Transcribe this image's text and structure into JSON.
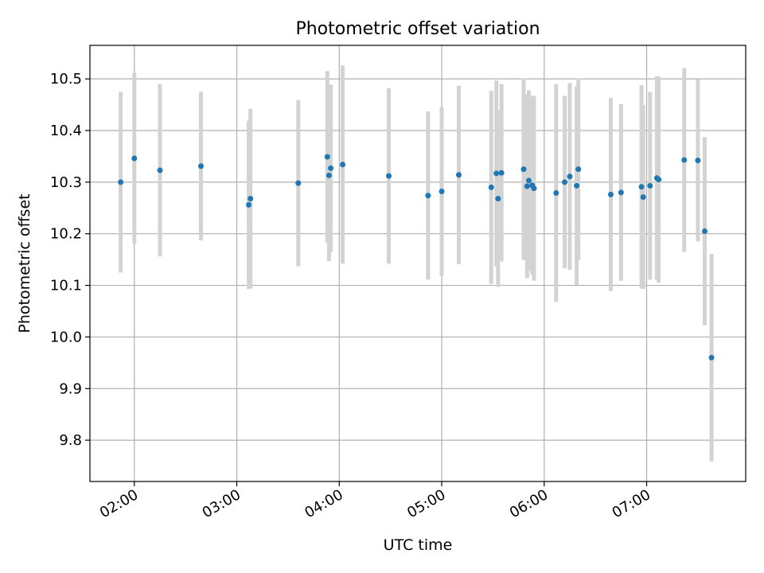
{
  "chart_data": {
    "type": "scatter",
    "title": "Photometric offset variation",
    "xlabel": "UTC time",
    "ylabel": "Photometric offset",
    "x_ticks": [
      "02:00",
      "03:00",
      "04:00",
      "05:00",
      "06:00",
      "07:00"
    ],
    "y_ticks": [
      "9.8",
      "9.9",
      "10.0",
      "10.1",
      "10.2",
      "10.3",
      "10.4",
      "10.5"
    ],
    "xlim": [
      "01:34",
      "07:58"
    ],
    "ylim": [
      9.72,
      10.565
    ],
    "grid": true,
    "colors": {
      "point": "#1f77b4",
      "errorbar": "#d3d3d3",
      "grid": "#b0b0b0"
    },
    "points": [
      {
        "x": "01:52",
        "y": 10.3,
        "err": 0.175
      },
      {
        "x": "02:00",
        "y": 10.346,
        "err": 0.166
      },
      {
        "x": "02:15",
        "y": 10.323,
        "err": 0.167
      },
      {
        "x": "02:39",
        "y": 10.331,
        "err": 0.144
      },
      {
        "x": "03:07",
        "y": 10.256,
        "err": 0.163
      },
      {
        "x": "03:08",
        "y": 10.268,
        "err": 0.174
      },
      {
        "x": "03:36",
        "y": 10.298,
        "err": 0.161
      },
      {
        "x": "03:53",
        "y": 10.349,
        "err": 0.166
      },
      {
        "x": "03:54",
        "y": 10.313,
        "err": 0.166
      },
      {
        "x": "03:55",
        "y": 10.327,
        "err": 0.162
      },
      {
        "x": "04:02",
        "y": 10.334,
        "err": 0.192
      },
      {
        "x": "04:29",
        "y": 10.312,
        "err": 0.17
      },
      {
        "x": "04:52",
        "y": 10.274,
        "err": 0.163
      },
      {
        "x": "05:00",
        "y": 10.282,
        "err": 0.163
      },
      {
        "x": "05:10",
        "y": 10.314,
        "err": 0.173
      },
      {
        "x": "05:29",
        "y": 10.29,
        "err": 0.187
      },
      {
        "x": "05:32",
        "y": 10.317,
        "err": 0.18
      },
      {
        "x": "05:33",
        "y": 10.268,
        "err": 0.171
      },
      {
        "x": "05:35",
        "y": 10.318,
        "err": 0.172
      },
      {
        "x": "05:48",
        "y": 10.325,
        "err": 0.176
      },
      {
        "x": "05:50",
        "y": 10.292,
        "err": 0.178
      },
      {
        "x": "05:51",
        "y": 10.303,
        "err": 0.175
      },
      {
        "x": "05:53",
        "y": 10.294,
        "err": 0.173
      },
      {
        "x": "05:54",
        "y": 10.288,
        "err": 0.179
      },
      {
        "x": "06:07",
        "y": 10.279,
        "err": 0.211
      },
      {
        "x": "06:12",
        "y": 10.3,
        "err": 0.167
      },
      {
        "x": "06:15",
        "y": 10.311,
        "err": 0.181
      },
      {
        "x": "06:19",
        "y": 10.293,
        "err": 0.192
      },
      {
        "x": "06:20",
        "y": 10.325,
        "err": 0.176
      },
      {
        "x": "06:39",
        "y": 10.276,
        "err": 0.187
      },
      {
        "x": "06:45",
        "y": 10.28,
        "err": 0.171
      },
      {
        "x": "06:57",
        "y": 10.291,
        "err": 0.197
      },
      {
        "x": "06:58",
        "y": 10.271,
        "err": 0.178
      },
      {
        "x": "07:02",
        "y": 10.293,
        "err": 0.182
      },
      {
        "x": "07:06",
        "y": 10.308,
        "err": 0.197
      },
      {
        "x": "07:07",
        "y": 10.305,
        "err": 0.2
      },
      {
        "x": "07:22",
        "y": 10.343,
        "err": 0.178
      },
      {
        "x": "07:30",
        "y": 10.342,
        "err": 0.157
      },
      {
        "x": "07:34",
        "y": 10.205,
        "err": 0.182
      },
      {
        "x": "07:38",
        "y": 9.96,
        "err": 0.201
      }
    ]
  }
}
